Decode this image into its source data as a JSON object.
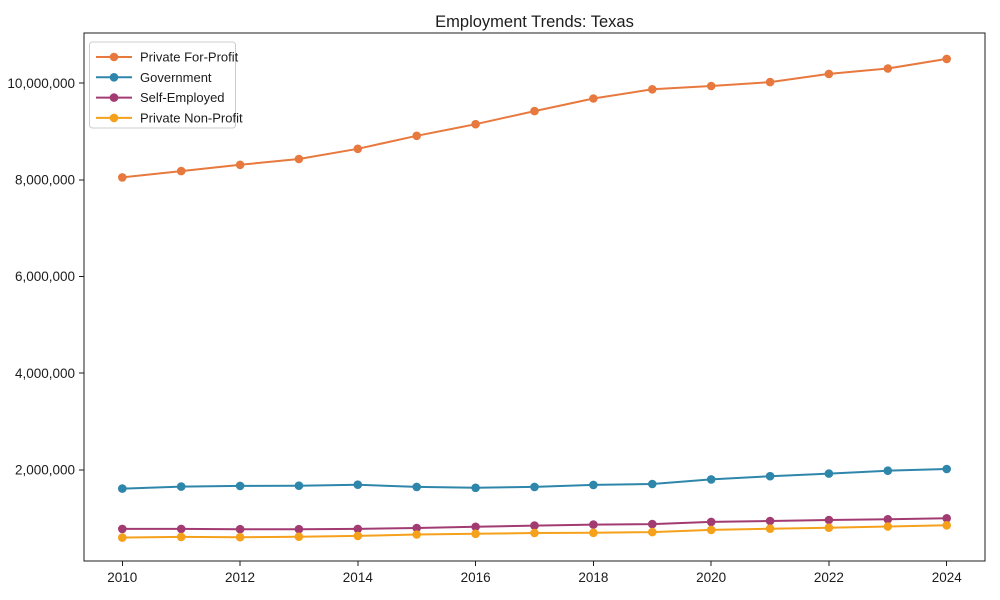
{
  "figure": {
    "title": "Employment Trends: Texas"
  },
  "chart_data": {
    "type": "line",
    "title": "Employment Trends: Texas",
    "xlabel": "",
    "ylabel": "",
    "grid": false,
    "background_color": "#ffffff",
    "frame_color": "#1c1c1c",
    "marker": "o",
    "x": [
      2010,
      2011,
      2012,
      2013,
      2014,
      2015,
      2016,
      2017,
      2018,
      2019,
      2020,
      2021,
      2022,
      2023,
      2024
    ],
    "series": [
      {
        "name": "Private For-Profit",
        "color": "#E8793E",
        "values": [
          8050000,
          8180000,
          8310000,
          8430000,
          8640000,
          8910000,
          9150000,
          9420000,
          9680000,
          9870000,
          9940000,
          10020000,
          10190000,
          10300000,
          10500000
        ]
      },
      {
        "name": "Government",
        "color": "#2E86AB",
        "values": [
          1615000,
          1655000,
          1670000,
          1675000,
          1695000,
          1650000,
          1630000,
          1650000,
          1690000,
          1710000,
          1805000,
          1870000,
          1925000,
          1985000,
          2020000
        ]
      },
      {
        "name": "Self-Employed",
        "color": "#A23B72",
        "values": [
          780000,
          780000,
          775000,
          775000,
          780000,
          800000,
          825000,
          850000,
          870000,
          880000,
          925000,
          945000,
          965000,
          980000,
          1000000
        ]
      },
      {
        "name": "Private Non-Profit",
        "color": "#F5A11B",
        "values": [
          600000,
          615000,
          610000,
          620000,
          635000,
          665000,
          680000,
          695000,
          700000,
          715000,
          760000,
          785000,
          805000,
          830000,
          855000
        ]
      }
    ],
    "xticks": [
      2010,
      2012,
      2014,
      2016,
      2018,
      2020,
      2022,
      2024
    ],
    "yticks": [
      2000000,
      4000000,
      6000000,
      8000000,
      10000000
    ],
    "ytick_labels": [
      "2,000,000",
      "4,000,000",
      "6,000,000",
      "8,000,000",
      "10,000,000"
    ],
    "xlim": [
      2009.35,
      2024.65
    ],
    "ylim": [
      117000,
      11035000
    ],
    "legend": {
      "position": "upper-left",
      "entries": [
        "Private For-Profit",
        "Government",
        "Self-Employed",
        "Private Non-Profit"
      ]
    }
  }
}
